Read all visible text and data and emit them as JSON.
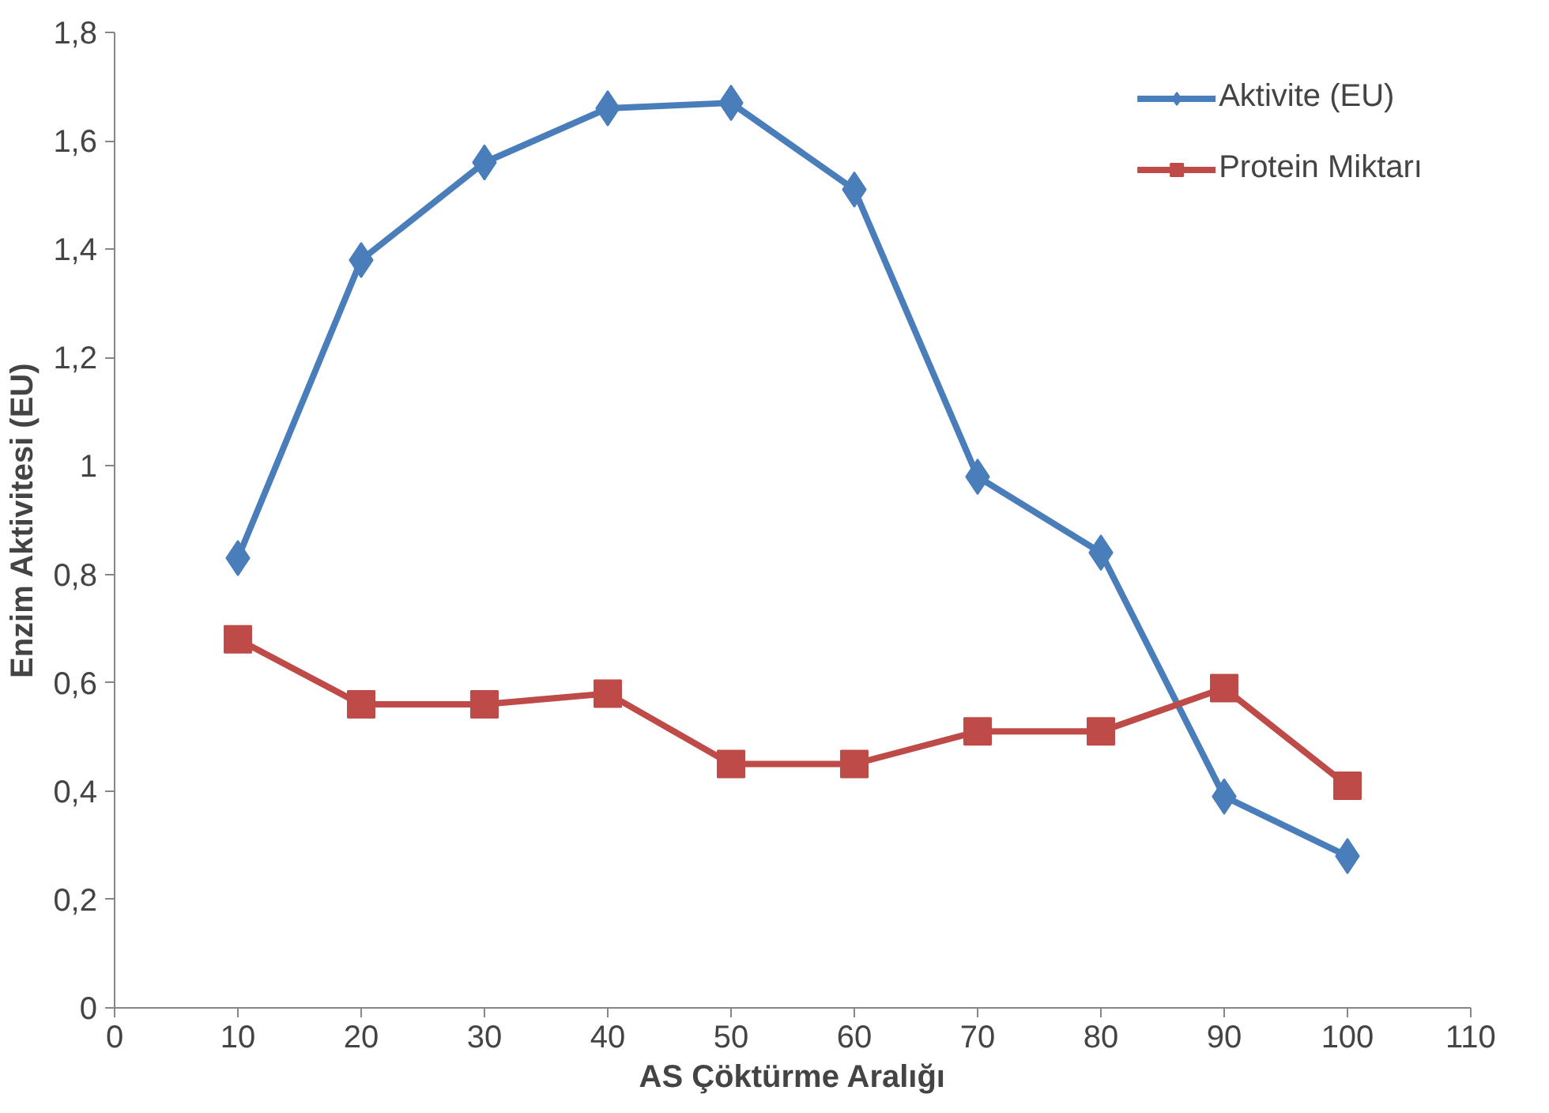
{
  "chart_data": {
    "type": "line",
    "xlabel": "AS Çöktürme Aralığı",
    "ylabel": "Enzim Aktivitesi (EU)",
    "x": [
      10,
      20,
      30,
      40,
      50,
      60,
      70,
      80,
      90,
      100
    ],
    "series": [
      {
        "name": "Aktivite (EU)",
        "color": "#4a7ebb",
        "marker": "diamond",
        "values": [
          0.83,
          1.38,
          1.56,
          1.66,
          1.67,
          1.51,
          0.98,
          0.84,
          0.39,
          0.28
        ]
      },
      {
        "name": "Protein Miktarı",
        "color": "#be4b48",
        "marker": "square",
        "values": [
          0.68,
          0.56,
          0.56,
          0.58,
          0.45,
          0.45,
          0.51,
          0.51,
          0.59,
          0.41
        ]
      }
    ],
    "xlim": [
      0,
      110
    ],
    "xticks": [
      0,
      10,
      20,
      30,
      40,
      50,
      60,
      70,
      80,
      90,
      100,
      110
    ],
    "ylim": [
      0,
      1.8
    ],
    "yticks": [
      0,
      {
        "value": 0.2,
        "label": "0,2"
      },
      {
        "value": 0.4,
        "label": "0,4"
      },
      {
        "value": 0.6,
        "label": "0,6"
      },
      {
        "value": 0.8,
        "label": "0,8"
      },
      1,
      {
        "value": 1.2,
        "label": "1,2"
      },
      {
        "value": 1.4,
        "label": "1,4"
      },
      {
        "value": 1.6,
        "label": "1,6"
      },
      {
        "value": 1.8,
        "label": "1,8"
      }
    ],
    "grid": false,
    "legend": "top right",
    "line_style": "solid"
  }
}
